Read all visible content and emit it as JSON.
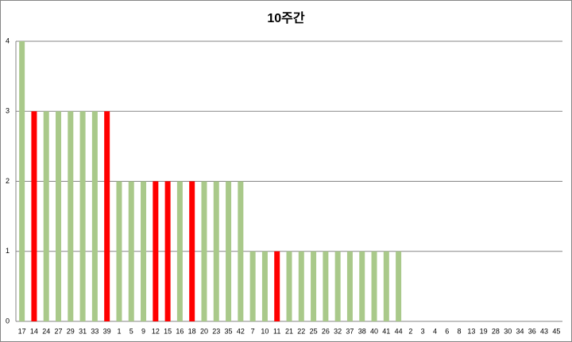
{
  "chart_data": {
    "type": "bar",
    "title": "10주간",
    "categories": [
      "17",
      "14",
      "24",
      "27",
      "29",
      "31",
      "33",
      "39",
      "1",
      "5",
      "9",
      "12",
      "15",
      "16",
      "18",
      "20",
      "23",
      "35",
      "42",
      "7",
      "10",
      "11",
      "21",
      "22",
      "25",
      "26",
      "32",
      "37",
      "38",
      "40",
      "41",
      "44",
      "2",
      "3",
      "4",
      "6",
      "8",
      "13",
      "19",
      "28",
      "30",
      "34",
      "36",
      "43",
      "45"
    ],
    "values": [
      4,
      3,
      3,
      3,
      3,
      3,
      3,
      3,
      2,
      2,
      2,
      2,
      2,
      2,
      2,
      2,
      2,
      2,
      2,
      1,
      1,
      1,
      1,
      1,
      1,
      1,
      1,
      1,
      1,
      1,
      1,
      1,
      0,
      0,
      0,
      0,
      0,
      0,
      0,
      0,
      0,
      0,
      0,
      0,
      0
    ],
    "colors": [
      "#a9c98a",
      "#ff0000",
      "#a9c98a",
      "#a9c98a",
      "#a9c98a",
      "#a9c98a",
      "#a9c98a",
      "#ff0000",
      "#a9c98a",
      "#a9c98a",
      "#a9c98a",
      "#ff0000",
      "#ff0000",
      "#a9c98a",
      "#ff0000",
      "#a9c98a",
      "#a9c98a",
      "#a9c98a",
      "#a9c98a",
      "#a9c98a",
      "#a9c98a",
      "#ff0000",
      "#a9c98a",
      "#a9c98a",
      "#a9c98a",
      "#a9c98a",
      "#a9c98a",
      "#a9c98a",
      "#a9c98a",
      "#a9c98a",
      "#a9c98a",
      "#a9c98a",
      "#a9c98a",
      "#a9c98a",
      "#a9c98a",
      "#a9c98a",
      "#a9c98a",
      "#a9c98a",
      "#a9c98a",
      "#a9c98a",
      "#a9c98a",
      "#a9c98a",
      "#a9c98a",
      "#a9c98a",
      "#a9c98a"
    ],
    "ylim": [
      0,
      4
    ],
    "yticks": [
      0,
      1,
      2,
      3,
      4
    ],
    "grid": true
  }
}
